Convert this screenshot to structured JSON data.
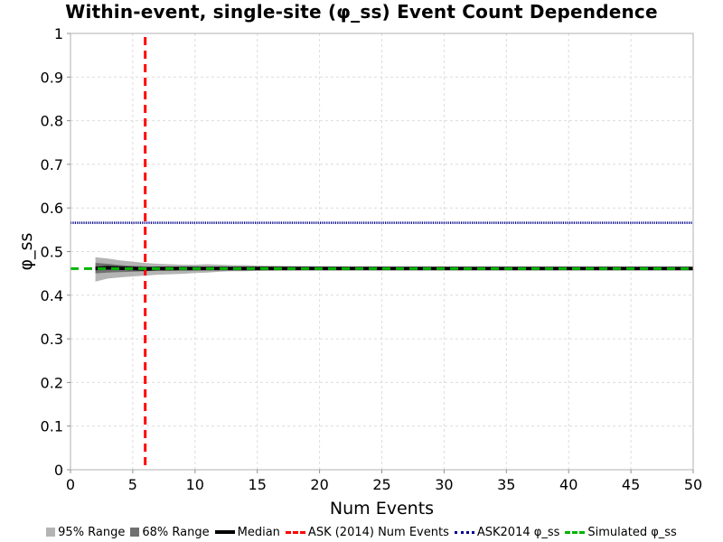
{
  "chart_data": {
    "type": "line",
    "title": "Within-event, single-site (φ_ss) Event Count Dependence",
    "xlabel": "Num Events",
    "ylabel": "φ_ss",
    "xlim": [
      0,
      50
    ],
    "ylim": [
      0,
      1
    ],
    "xticks": [
      "0",
      "5",
      "10",
      "15",
      "20",
      "25",
      "30",
      "35",
      "40",
      "45",
      "50"
    ],
    "yticks": [
      "0",
      "0.1",
      "0.2",
      "0.3",
      "0.4",
      "0.5",
      "0.6",
      "0.7",
      "0.8",
      "0.9",
      "1"
    ],
    "grid": true,
    "legend_position": "bottom",
    "x": [
      2,
      3,
      4,
      5,
      6,
      7,
      8,
      9,
      10,
      11,
      12,
      13,
      14,
      15,
      17,
      20,
      25,
      30,
      35,
      40,
      45,
      50
    ],
    "series": [
      {
        "name": "95% Range",
        "kind": "band",
        "color": "#b4b4b4",
        "lower": [
          0.431,
          0.438,
          0.441,
          0.443,
          0.445,
          0.447,
          0.448,
          0.449,
          0.451,
          0.452,
          0.454,
          0.455,
          0.455,
          0.456,
          0.457,
          0.458,
          0.459,
          0.459,
          0.46,
          0.46,
          0.46,
          0.46
        ],
        "upper": [
          0.487,
          0.484,
          0.48,
          0.477,
          0.474,
          0.472,
          0.471,
          0.47,
          0.47,
          0.471,
          0.47,
          0.469,
          0.469,
          0.468,
          0.467,
          0.466,
          0.465,
          0.464,
          0.463,
          0.463,
          0.462,
          0.462
        ]
      },
      {
        "name": "68% Range",
        "kind": "band",
        "color": "#707070",
        "lower": [
          0.45,
          0.452,
          0.453,
          0.454,
          0.455,
          0.456,
          0.456,
          0.457,
          0.457,
          0.458,
          0.458,
          0.458,
          0.459,
          0.459,
          0.459,
          0.46,
          0.46,
          0.46,
          0.46,
          0.461,
          0.461,
          0.461
        ],
        "upper": [
          0.474,
          0.472,
          0.469,
          0.467,
          0.466,
          0.465,
          0.465,
          0.464,
          0.464,
          0.464,
          0.464,
          0.463,
          0.463,
          0.463,
          0.463,
          0.462,
          0.462,
          0.462,
          0.462,
          0.462,
          0.462,
          0.462
        ]
      },
      {
        "name": "Median",
        "kind": "line",
        "color": "#000000",
        "values": [
          0.461,
          0.463,
          0.462,
          0.461,
          0.46,
          0.461,
          0.461,
          0.461,
          0.461,
          0.461,
          0.461,
          0.461,
          0.461,
          0.461,
          0.461,
          0.461,
          0.461,
          0.461,
          0.461,
          0.461,
          0.461,
          0.461
        ]
      }
    ],
    "reference_lines": [
      {
        "name": "ASK (2014) Num Events",
        "orientation": "vertical",
        "value": 6,
        "color": "#ff0000",
        "style": "dashed"
      },
      {
        "name": "ASK2014 φ_ss",
        "orientation": "horizontal",
        "value": 0.566,
        "color": "#00008b",
        "style": "dotted"
      },
      {
        "name": "Simulated φ_ss",
        "orientation": "horizontal",
        "value": 0.461,
        "color": "#00b400",
        "style": "dashed"
      }
    ]
  },
  "legend": {
    "items": [
      {
        "label": "95% Range",
        "swatch": "box",
        "color": "#b4b4b4"
      },
      {
        "label": "68% Range",
        "swatch": "box",
        "color": "#707070"
      },
      {
        "label": "Median",
        "swatch": "solid",
        "color": "#000000"
      },
      {
        "label": "ASK (2014) Num Events",
        "swatch": "dashed",
        "color": "#ff0000"
      },
      {
        "label": "ASK2014 φ_ss",
        "swatch": "dotted",
        "color": "#00008b"
      },
      {
        "label": "Simulated φ_ss",
        "swatch": "dashed",
        "color": "#00b400"
      }
    ]
  }
}
